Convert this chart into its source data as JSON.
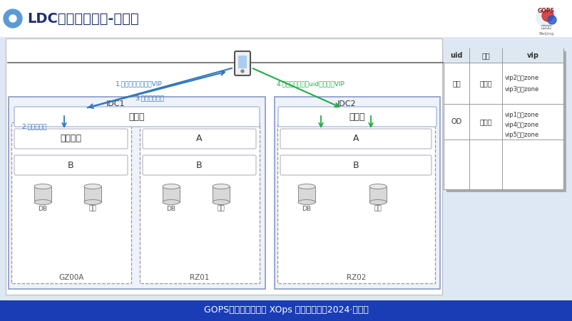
{
  "title": "LDC架构流量调度-移动端",
  "footer": "GOPS全球运维大会暨 XOps 技术创新峰会2024·北京站",
  "bg_color": "#dde8f4",
  "idc1_label": "IDC1",
  "idc2_label": "IDC2",
  "access_layer": "接入层",
  "login_center": "登录中心",
  "module_a": "A",
  "module_b": "B",
  "db_label": "DB",
  "storage_label": "储存",
  "zone1": "GZ00A",
  "zone2": "RZ01",
  "zone3": "RZ02",
  "arrow1": "1.初次登录随机选取VIP",
  "arrow2": "2.本机房处理",
  "arrow3": "3.返回用户信息",
  "arrow4": "4.已登录用户根据uid请求对应VIP",
  "table_headers": [
    "uid",
    "状态",
    "vip"
  ],
  "table_row1_col0": "未知",
  "table_row1_col1": "登录前",
  "table_row1_col2a": "vip2随机zone",
  "table_row1_col2b": "vip3随机zone",
  "table_row2_col0": "OD",
  "table_row2_col1": "登录后",
  "table_row2_col2a": "vip1对应zone",
  "table_row2_col2b": "vip4随机zone",
  "table_row2_col2c": "vip5随机zone"
}
